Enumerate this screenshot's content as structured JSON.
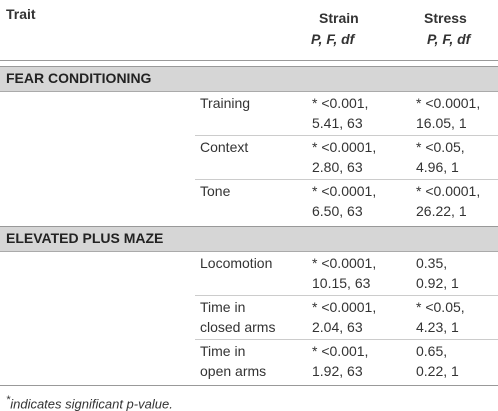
{
  "header": {
    "trait": "Trait",
    "strain": "Strain",
    "strain_sub": "P, F, df",
    "stress": "Stress",
    "stress_sub": "P, F, df"
  },
  "sections": [
    {
      "title": "FEAR CONDITIONING",
      "rows": [
        {
          "trait": [
            "Training"
          ],
          "strain": [
            "* <0.001,",
            "5.41, 63"
          ],
          "stress": [
            "* <0.0001,",
            "16.05, 1"
          ]
        },
        {
          "trait": [
            "Context"
          ],
          "strain": [
            "* <0.0001,",
            "2.80, 63"
          ],
          "stress": [
            "* <0.05,",
            "4.96, 1"
          ]
        },
        {
          "trait": [
            "Tone"
          ],
          "strain": [
            "* <0.0001,",
            "6.50, 63"
          ],
          "stress": [
            "* <0.0001,",
            "26.22, 1"
          ]
        }
      ]
    },
    {
      "title": "ELEVATED PLUS MAZE",
      "rows": [
        {
          "trait": [
            "Locomotion"
          ],
          "strain": [
            "* <0.0001,",
            "10.15, 63"
          ],
          "stress": [
            "0.35,",
            "0.92, 1"
          ]
        },
        {
          "trait": [
            "Time in",
            "closed arms"
          ],
          "strain": [
            "* <0.0001,",
            "2.04, 63"
          ],
          "stress": [
            "* <0.05,",
            "4.23, 1"
          ]
        },
        {
          "trait": [
            "Time in",
            "open arms"
          ],
          "strain": [
            "* <0.001,",
            "1.92, 63"
          ],
          "stress": [
            "0.65,",
            "0.22, 1"
          ]
        }
      ]
    }
  ],
  "footnote": {
    "mark": "*",
    "text": "indicates significant p-value."
  }
}
